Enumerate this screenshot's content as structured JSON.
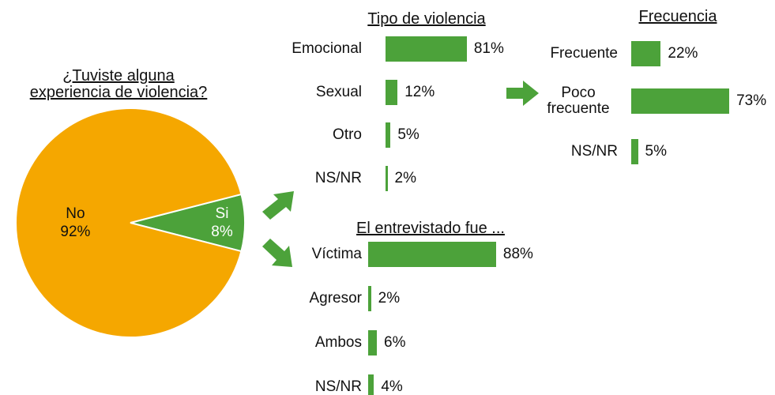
{
  "chart_data": [
    {
      "type": "pie",
      "title": "¿Tuviste alguna experiencia de violencia?",
      "categories": [
        "No",
        "Si"
      ],
      "values": [
        92,
        8
      ],
      "value_labels": [
        "92%",
        "8%"
      ],
      "colors": [
        "#f5a700",
        "#4ca23a"
      ]
    },
    {
      "type": "bar",
      "title": "Tipo de violencia",
      "categories": [
        "Emocional",
        "Sexual",
        "Otro",
        "NS/NR"
      ],
      "values": [
        81,
        12,
        5,
        2
      ],
      "value_labels": [
        "81%",
        "12%",
        "5%",
        "2%"
      ],
      "color": "#4ca23a"
    },
    {
      "type": "bar",
      "title": "Frecuencia",
      "categories": [
        "Frecuente",
        "Poco frecuente",
        "NS/NR"
      ],
      "values": [
        22,
        73,
        5
      ],
      "value_labels": [
        "22%",
        "73%",
        "5%"
      ],
      "color": "#4ca23a"
    },
    {
      "type": "bar",
      "title": "El entrevistado fue ...",
      "categories": [
        "Víctima",
        "Agresor",
        "Ambos",
        "NS/NR"
      ],
      "values": [
        88,
        2,
        6,
        4
      ],
      "value_labels": [
        "88%",
        "2%",
        "6%",
        "4%"
      ],
      "color": "#4ca23a"
    }
  ]
}
